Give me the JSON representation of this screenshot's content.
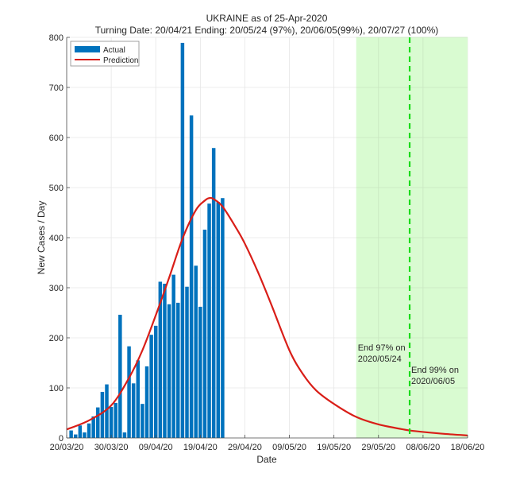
{
  "chart_data": {
    "type": "bar",
    "title": "UKRAINE as of 25-Apr-2020",
    "subtitle": "Turning Date: 20/04/21  Ending: 20/05/24 (97%), 20/06/05(99%), 20/07/27 (100%)",
    "xlabel": "Date",
    "ylabel": "New Cases / Day",
    "ylim": [
      0,
      800
    ],
    "yticks": [
      0,
      100,
      200,
      300,
      400,
      500,
      600,
      700,
      800
    ],
    "xlim_days": [
      0,
      90
    ],
    "x_start_date": "20/03/20",
    "xticks": [
      {
        "day": 0,
        "label": "20/03/20"
      },
      {
        "day": 10,
        "label": "30/03/20"
      },
      {
        "day": 20,
        "label": "09/04/20"
      },
      {
        "day": 30,
        "label": "19/04/20"
      },
      {
        "day": 40,
        "label": "29/04/20"
      },
      {
        "day": 50,
        "label": "09/05/20"
      },
      {
        "day": 60,
        "label": "19/05/20"
      },
      {
        "day": 70,
        "label": "29/05/20"
      },
      {
        "day": 80,
        "label": "08/06/20"
      },
      {
        "day": 90,
        "label": "18/06/20"
      }
    ],
    "grid": true,
    "legend": {
      "position": "top-left",
      "entries": [
        {
          "name": "Actual",
          "kind": "bar"
        },
        {
          "name": "Prediction",
          "kind": "line"
        }
      ]
    },
    "series": [
      {
        "name": "Actual",
        "type": "bar",
        "color": "#0072BD",
        "start_day": 1,
        "values": [
          15,
          7,
          25,
          11,
          29,
          43,
          61,
          92,
          107,
          62,
          70,
          246,
          11,
          183,
          109,
          155,
          68,
          143,
          206,
          224,
          312,
          308,
          267,
          326,
          270,
          789,
          302,
          644,
          344,
          262,
          416,
          468,
          579,
          471,
          479
        ]
      },
      {
        "name": "Prediction",
        "type": "line",
        "color": "#D91E18",
        "points": [
          [
            0,
            17
          ],
          [
            5,
            35
          ],
          [
            10,
            65
          ],
          [
            14,
            120
          ],
          [
            17,
            175
          ],
          [
            20,
            245
          ],
          [
            23,
            320
          ],
          [
            26,
            398
          ],
          [
            29,
            455
          ],
          [
            31,
            474
          ],
          [
            32,
            479
          ],
          [
            33,
            477
          ],
          [
            35,
            462
          ],
          [
            38,
            420
          ],
          [
            40,
            388
          ],
          [
            43,
            330
          ],
          [
            46,
            265
          ],
          [
            50,
            175
          ],
          [
            53,
            128
          ],
          [
            56,
            95
          ],
          [
            60,
            68
          ],
          [
            65,
            42
          ],
          [
            70,
            27
          ],
          [
            75,
            18
          ],
          [
            77,
            15
          ],
          [
            80,
            12
          ],
          [
            85,
            8
          ],
          [
            90,
            5
          ]
        ]
      }
    ],
    "shaded_region": {
      "start_day": 65,
      "end_day": 90,
      "color": "#D9FBD1",
      "meaning": "after 97% end date"
    },
    "vertical_line": {
      "day": 77,
      "color": "#1ADB1A",
      "style": "dashed",
      "meaning": "99% end date"
    },
    "annotations": [
      {
        "lines": [
          "End 97% on",
          "2020/05/24"
        ],
        "day": 65,
        "value": 175
      },
      {
        "lines": [
          "End 99% on",
          "2020/06/05"
        ],
        "day": 77,
        "value": 130
      }
    ]
  }
}
